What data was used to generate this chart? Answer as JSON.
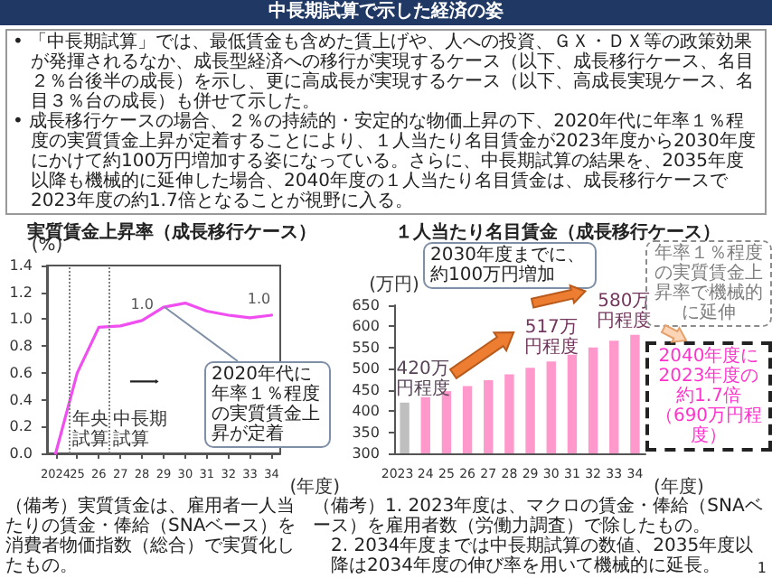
{
  "chart_data": [
    {
      "type": "line",
      "title": "実質賃金上昇率（成長移行ケース）",
      "xlabel": "(年度)",
      "ylabel": "(%)",
      "x": [
        2024,
        2025,
        2026,
        2027,
        2028,
        2029,
        2030,
        2031,
        2032,
        2033,
        2034
      ],
      "series": [
        {
          "color": "#f04ef0",
          "values": [
            0.0,
            0.6,
            0.94,
            0.95,
            0.99,
            1.09,
            1.12,
            1.06,
            1.03,
            1.01,
            1.03
          ],
          "value_labels": [
            null,
            null,
            null,
            null,
            "1.0",
            null,
            null,
            null,
            null,
            null,
            "1.0"
          ]
        }
      ],
      "xlim": [
        2023.6,
        2034.4
      ],
      "xticks": [
        2024,
        {
          "value": 2025,
          "label": "25"
        },
        {
          "value": 2026,
          "label": "26"
        },
        {
          "value": 2027,
          "label": "27"
        },
        {
          "value": 2028,
          "label": "28"
        },
        {
          "value": 2029,
          "label": "29"
        },
        {
          "value": 2030,
          "label": "30"
        },
        {
          "value": 2031,
          "label": "31"
        },
        {
          "value": 2032,
          "label": "32"
        },
        {
          "value": 2033,
          "label": "33"
        },
        {
          "value": 2034,
          "label": "34"
        }
      ],
      "ylim": [
        0,
        1.4
      ],
      "yticks": [
        {
          "value": 0,
          "label": "0.0"
        },
        0.2,
        0.4,
        0.6,
        0.8,
        {
          "value": 1,
          "label": "1.0"
        },
        1.2,
        1.4
      ],
      "ref_lines": [
        {
          "axis": "x",
          "value": 2024.6,
          "label": "年央試算",
          "color": "#808080",
          "line_style": "dotted"
        },
        {
          "axis": "x",
          "value": 2026.5,
          "label": "中長期試算",
          "color": "#808080",
          "line_style": "dotted"
        }
      ],
      "grid": false,
      "marker": "none",
      "annotations": [
        "中長期試算で示した経済の姿",
        "• 「中長期試算」では、最低賃金も含めた賃上げや、人への投資、ＧＸ・ＤＸ等の政策効果が発揮されるなか、成長型経済への移行が実現するケース（以下、成長移行ケース、名目２％台後半の成長）を示し、更に高成長が実現するケース（以下、高成長実現ケース、名目３％台の成長）も併せて示した。",
        "• 成長移行ケースの場合、２％の持続的・安定的な物価上昇の下、2020年代に年率１％程度の実質賃金上昇が定着することにより、１人当たり名目賃金が2023年度から2030年度にかけて約100万円増加する姿になっている。さらに、中長期試算の結果を、2035年度以降も機械的に延伸した場合、2040年度の１人当たり名目賃金は、成長移行ケースで2023年度の約1.7倍となることが視野に入る。",
        {
          "text": "2020年代に年率１％程度の実質賃金上昇が定着",
          "x": 2029,
          "y": 1.09
        },
        "（備考）実質賃金は、雇用者一人当たりの賃金・俸給（SNAベース）を消費者物価指数（総合）で実質化したもの。"
      ]
    },
    {
      "type": "bar",
      "title": "１人当たり名目賃金（成長移行ケース）",
      "xlabel": "(年度)",
      "ylabel": "(万円)",
      "categories": [
        "2023",
        "24",
        "25",
        "26",
        "27",
        "28",
        "29",
        "30",
        "31",
        "32",
        "33",
        "34"
      ],
      "values": [
        420,
        433,
        447,
        459,
        473,
        487,
        502,
        517,
        533,
        550,
        566,
        580
      ],
      "colors": [
        "#bfbfbf",
        "#ff99cc",
        "#ff99cc",
        "#ff99cc",
        "#ff99cc",
        "#ff99cc",
        "#ff99cc",
        "#ff99cc",
        "#ff99cc",
        "#ff99cc",
        "#ff99cc",
        "#ff99cc"
      ],
      "value_labels": [
        "420万円程度",
        null,
        null,
        null,
        null,
        null,
        null,
        "517万円程度",
        null,
        null,
        null,
        "580万円程度"
      ],
      "ylim": [
        300,
        650
      ],
      "yticks": [
        300,
        350,
        400,
        450,
        500,
        550,
        600,
        650
      ],
      "grid": false,
      "annotations": [
        "2030年度までに、約100万円増加",
        "年率１％程度の実質賃金上昇率で機械的に延伸",
        "2040年度に2023年度の約1.7倍（690万円程度）",
        "（備考）1. 2023年度は、マクロの賃金・俸給（SNAベース）を雇用者数（労働力調査）で除したもの。",
        "2. 2034年度までは中長期試算の数値、2035年度以降は2034年度の伸び率を用いて機械的に延長。",
        "1"
      ]
    }
  ]
}
